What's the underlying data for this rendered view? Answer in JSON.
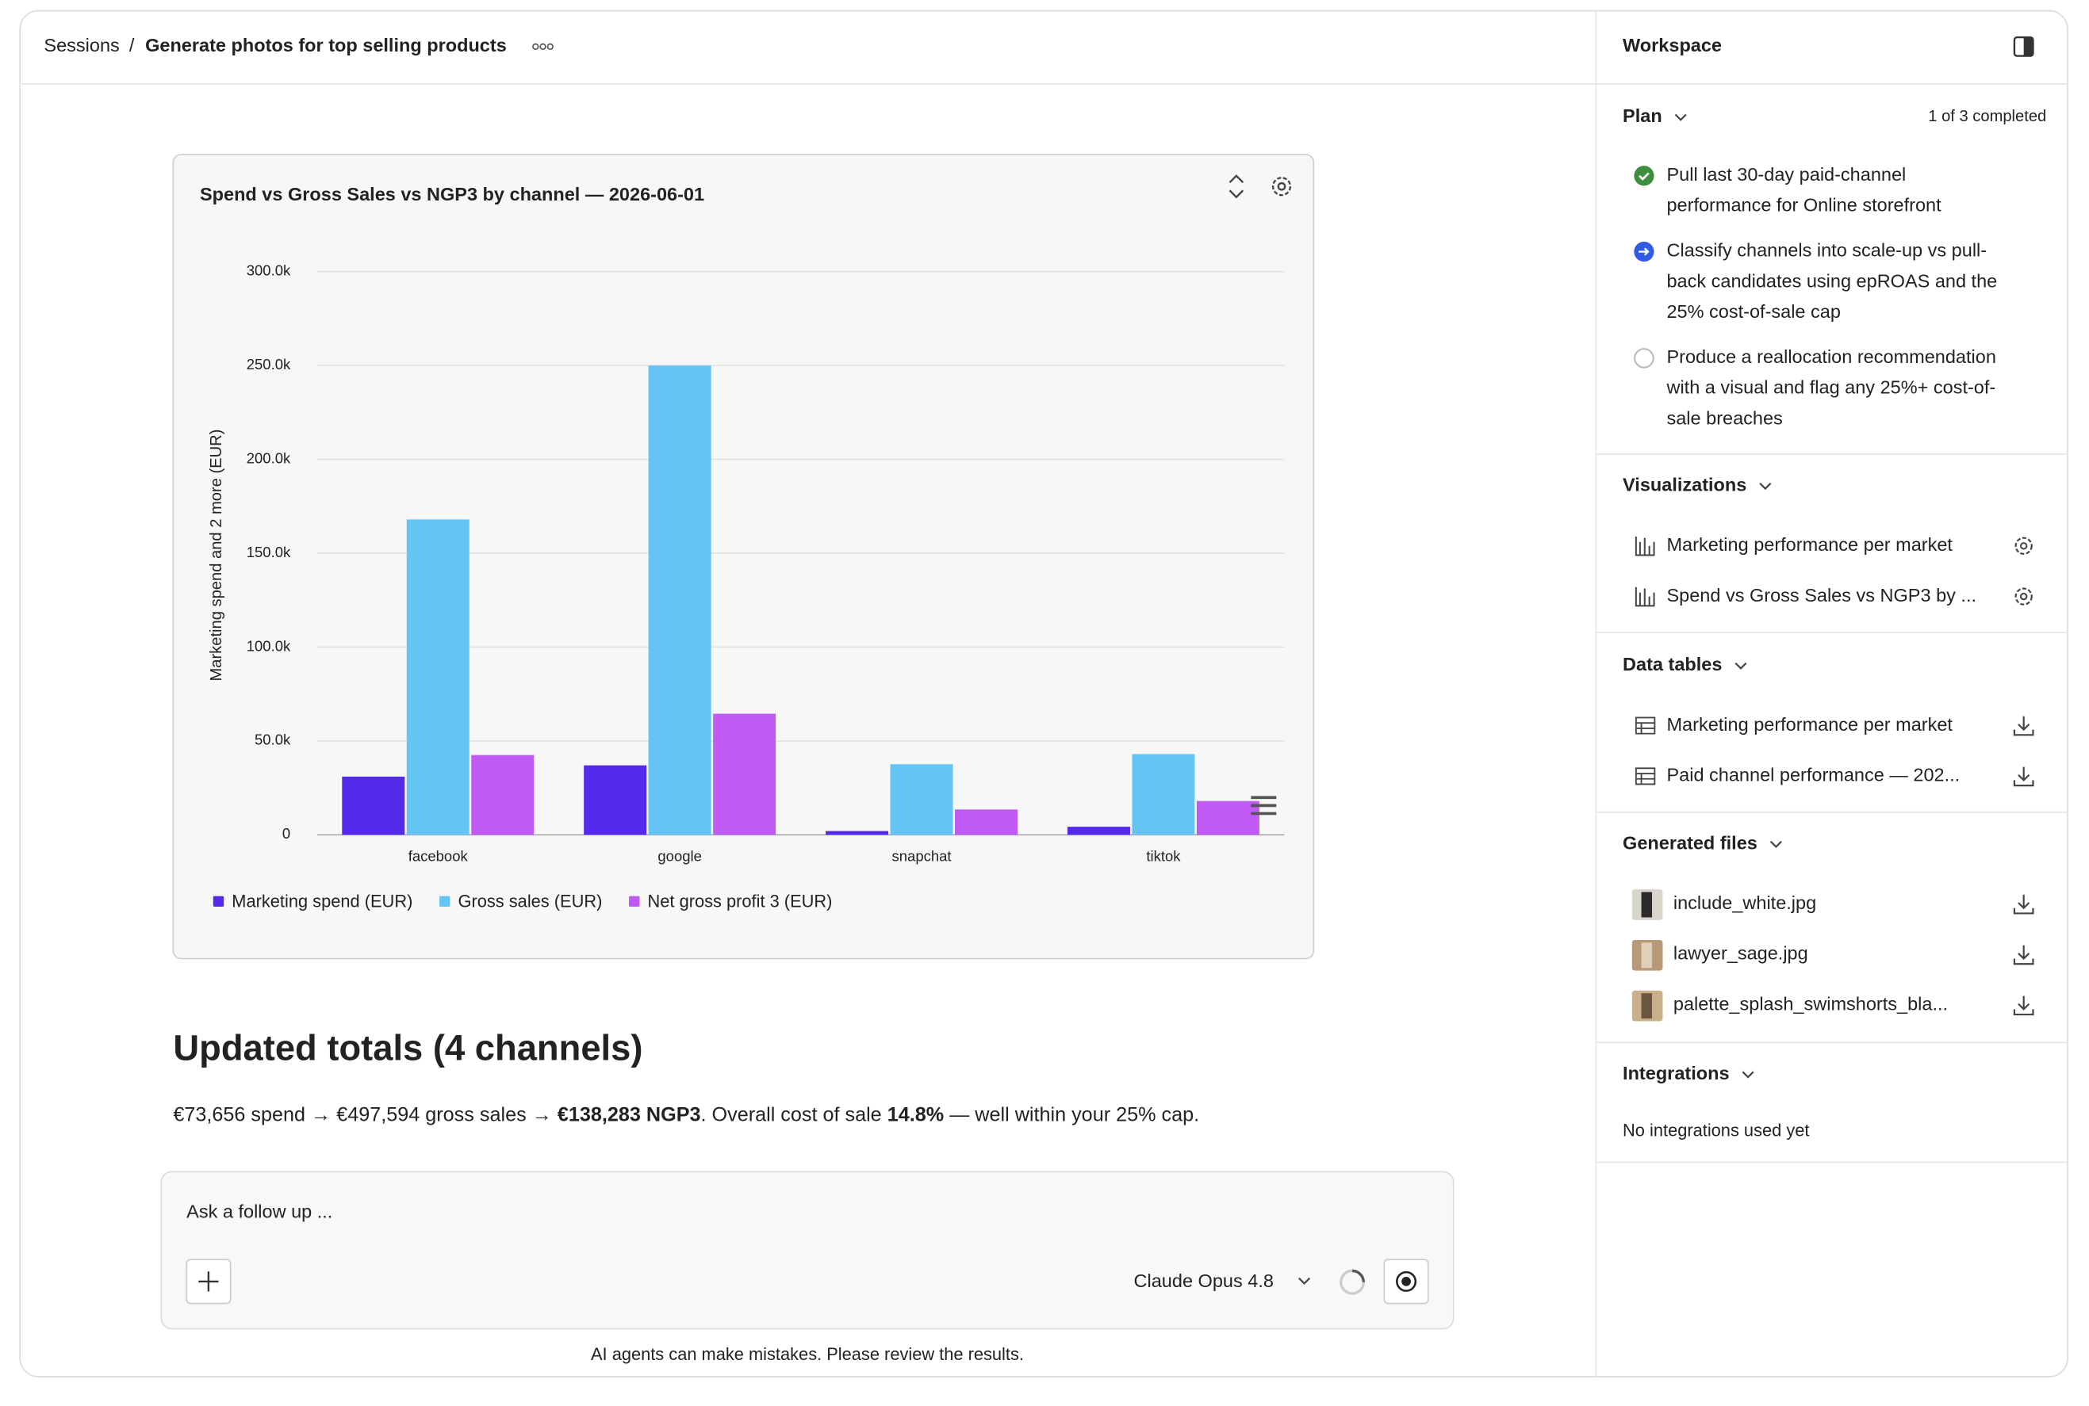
{
  "header": {
    "breadcrumb_root": "Sessions",
    "separator": "/",
    "title": "Generate photos for top selling products"
  },
  "chart": {
    "type": "bar",
    "title": "Spend vs Gross Sales vs NGP3 by channel — 2026-06-01",
    "y_label": "Marketing spend and 2 more (EUR)",
    "categories": [
      "facebook",
      "google",
      "snapchat",
      "tiktok"
    ],
    "series": [
      {
        "name": "Marketing spend (EUR)",
        "color": "#5429ea",
        "values": [
          31000,
          37000,
          2000,
          4300
        ]
      },
      {
        "name": "Gross sales (EUR)",
        "color": "#64c5f5",
        "values": [
          168000,
          250000,
          37600,
          43000
        ]
      },
      {
        "name": "Net gross profit 3 (EUR)",
        "color": "#bf5af2",
        "values": [
          42500,
          64500,
          13500,
          18000
        ]
      }
    ],
    "ylim": [
      0,
      300000
    ],
    "yticks": [
      0,
      {
        "value": 50000,
        "label": "50.0k"
      },
      {
        "value": 100000,
        "label": "100.0k"
      },
      {
        "value": 150000,
        "label": "150.0k"
      },
      {
        "value": 200000,
        "label": "200.0k"
      },
      {
        "value": 250000,
        "label": "250.0k"
      },
      {
        "value": 300000,
        "label": "300.0k"
      }
    ],
    "grid": true
  },
  "content": {
    "heading": "Updated totals (4 channels)",
    "summary": [
      "€73,656 spend → €497,594 gross sales → ",
      "€138,283 NGP3",
      ". Overall cost of sale ",
      "14.8%",
      " — well within your 25% cap."
    ]
  },
  "composer": {
    "placeholder": "Ask a follow up ...",
    "model": "Claude Opus 4.8",
    "disclaimer": "AI agents can make mistakes. Please review the results."
  },
  "sidebar": {
    "title": "Workspace",
    "plan": {
      "heading": "Plan",
      "progress": "1 of 3 completed",
      "items": [
        {
          "status": "done",
          "lines": [
            "Pull last 30-day paid-channel",
            "performance for Online storefront"
          ]
        },
        {
          "status": "active",
          "lines": [
            "Classify channels into scale-up vs pull-",
            "back candidates using epROAS and the",
            "25% cost-of-sale cap"
          ]
        },
        {
          "status": "pending",
          "lines": [
            "Produce a reallocation recommendation",
            "with a visual and flag any 25%+ cost-of-",
            "sale breaches"
          ]
        }
      ]
    },
    "visualizations": {
      "heading": "Visualizations",
      "items": [
        "Marketing performance per market",
        "Spend vs Gross Sales vs NGP3 by ..."
      ]
    },
    "data_tables": {
      "heading": "Data tables",
      "items": [
        "Marketing performance per market",
        "Paid channel performance — 202..."
      ]
    },
    "generated_files": {
      "heading": "Generated files",
      "items": [
        "include_white.jpg",
        "lawyer_sage.jpg",
        "palette_splash_swimshorts_bla..."
      ]
    },
    "integrations": {
      "heading": "Integrations",
      "empty": "No integrations used yet"
    }
  }
}
